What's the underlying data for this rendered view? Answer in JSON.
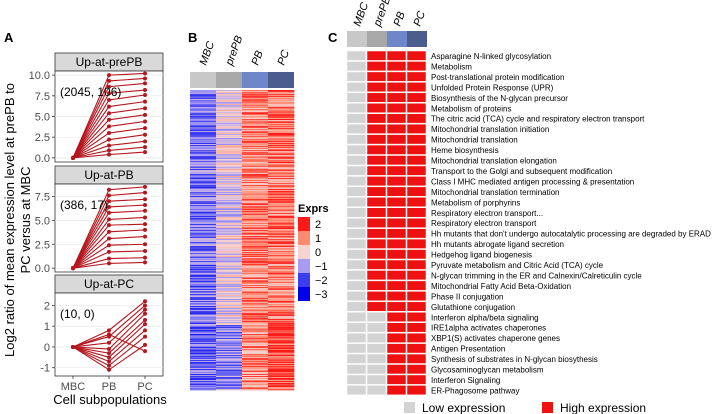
{
  "figure": {
    "panel_labels": [
      "A",
      "B",
      "C"
    ]
  },
  "chart_data": [
    {
      "type": "line",
      "panel": "A",
      "ylabel_line1": "Log2 ratio of mean expression level at prePB to",
      "ylabel_line2": "PC versus at MBC",
      "xlabel": "Cell subpopulations",
      "x": [
        "MBC",
        "PB",
        "PC"
      ],
      "line_color": "#b5171f",
      "facets": [
        {
          "title": "Up-at-prePB",
          "annotation": "(2045, 106)",
          "ylim": [
            -0.5,
            10.5
          ],
          "yticks": [
            0.0,
            2.5,
            5.0,
            7.5,
            10.0
          ],
          "ytick_labels": [
            "0.0",
            "2.5",
            "5.0",
            "7.5",
            "10.0"
          ],
          "series": [
            {
              "name": "g1",
              "values": [
                0,
                10.0,
                10.2
              ]
            },
            {
              "name": "g2",
              "values": [
                0,
                9.3,
                9.6
              ]
            },
            {
              "name": "g3",
              "values": [
                0,
                8.6,
                9.0
              ]
            },
            {
              "name": "g4",
              "values": [
                0,
                7.8,
                8.2
              ]
            },
            {
              "name": "g5",
              "values": [
                0,
                7.0,
                7.6
              ]
            },
            {
              "name": "g6",
              "values": [
                0,
                6.2,
                6.8
              ]
            },
            {
              "name": "g7",
              "values": [
                0,
                5.4,
                6.0
              ]
            },
            {
              "name": "g8",
              "values": [
                0,
                4.6,
                5.2
              ]
            },
            {
              "name": "g9",
              "values": [
                0,
                3.8,
                4.4
              ]
            },
            {
              "name": "g10",
              "values": [
                0,
                3.0,
                3.6
              ]
            },
            {
              "name": "g11",
              "values": [
                0,
                2.2,
                2.8
              ]
            },
            {
              "name": "g12",
              "values": [
                0,
                1.5,
                2.0
              ]
            },
            {
              "name": "g13",
              "values": [
                0,
                0.9,
                1.3
              ]
            },
            {
              "name": "g14",
              "values": [
                0,
                0.4,
                0.7
              ]
            }
          ]
        },
        {
          "title": "Up-at-PB",
          "annotation": "(386, 17)",
          "ylim": [
            -0.4,
            8.8
          ],
          "yticks": [
            0.0,
            2.5,
            5.0,
            7.5
          ],
          "ytick_labels": [
            "0.0",
            "2.5",
            "5.0",
            "7.5"
          ],
          "series": [
            {
              "name": "g1",
              "values": [
                0,
                8.2,
                8.5
              ]
            },
            {
              "name": "g2",
              "values": [
                0,
                7.6,
                7.9
              ]
            },
            {
              "name": "g3",
              "values": [
                0,
                7.0,
                7.2
              ]
            },
            {
              "name": "g4",
              "values": [
                0,
                6.4,
                6.6
              ]
            },
            {
              "name": "g5",
              "values": [
                0,
                5.8,
                6.0
              ]
            },
            {
              "name": "g6",
              "values": [
                0,
                5.1,
                5.3
              ]
            },
            {
              "name": "g7",
              "values": [
                0,
                4.5,
                4.6
              ]
            },
            {
              "name": "g8",
              "values": [
                0,
                3.8,
                4.0
              ]
            },
            {
              "name": "g9",
              "values": [
                0,
                3.1,
                3.3
              ]
            },
            {
              "name": "g10",
              "values": [
                0,
                2.4,
                2.5
              ]
            },
            {
              "name": "g11",
              "values": [
                0,
                1.7,
                1.8
              ]
            },
            {
              "name": "g12",
              "values": [
                0,
                1.0,
                1.1
              ]
            },
            {
              "name": "g13",
              "values": [
                0,
                0.5,
                0.6
              ]
            }
          ]
        },
        {
          "title": "Up-at-PC",
          "annotation": "(10, 0)",
          "ylim": [
            -1.4,
            2.6
          ],
          "yticks": [
            -1,
            0,
            1,
            2
          ],
          "ytick_labels": [
            "-1",
            "0",
            "1",
            "2"
          ],
          "series": [
            {
              "name": "g1",
              "values": [
                0,
                0.8,
                2.2
              ]
            },
            {
              "name": "g2",
              "values": [
                0,
                0.5,
                2.0
              ]
            },
            {
              "name": "g3",
              "values": [
                0,
                0.2,
                1.8
              ]
            },
            {
              "name": "g4",
              "values": [
                0,
                -0.1,
                1.6
              ]
            },
            {
              "name": "g5",
              "values": [
                0,
                -0.3,
                1.3
              ]
            },
            {
              "name": "g6",
              "values": [
                0,
                -0.5,
                1.1
              ]
            },
            {
              "name": "g7",
              "values": [
                0,
                -0.7,
                0.8
              ]
            },
            {
              "name": "g8",
              "values": [
                0,
                -0.9,
                0.5
              ]
            },
            {
              "name": "g9",
              "values": [
                0,
                -1.1,
                0.1
              ]
            },
            {
              "name": "g10",
              "values": [
                0,
                0.6,
                -0.2
              ]
            }
          ]
        }
      ]
    },
    {
      "type": "heatmap",
      "panel": "B",
      "columns": [
        "MBC",
        "prePB",
        "PB",
        "PC"
      ],
      "column_colors": [
        "#c8c8c8",
        "#a8a8a8",
        "#6f86c9",
        "#4a5d8c"
      ],
      "row_count": 300,
      "legend_title": "Exprs",
      "legend_values": [
        2,
        1,
        0,
        -1,
        -2,
        -3
      ],
      "legend_labels": [
        "2",
        "1",
        "0",
        "−1",
        "−2",
        "−3"
      ],
      "legend_colors": [
        "#ff1a1a",
        "#ff8a72",
        "#f7d3cf",
        "#a89bf2",
        "#3c3cf0",
        "#0000e8"
      ],
      "value_range": [
        -3,
        2
      ]
    },
    {
      "type": "table",
      "panel": "C",
      "columns": [
        "MBC",
        "prePB",
        "PB",
        "PC"
      ],
      "column_colors": [
        "#c8c8c8",
        "#a8a8a8",
        "#6f86c9",
        "#4a5d8c"
      ],
      "low_color": "#d3d3d3",
      "high_color": "#ee1111",
      "legend": {
        "low": "Low expression",
        "high": "High expression"
      },
      "rows": [
        {
          "pathway": "Asparagine N-linked glycosylation",
          "values": [
            0,
            1,
            1,
            1
          ]
        },
        {
          "pathway": "Metabolism",
          "values": [
            0,
            1,
            1,
            1
          ]
        },
        {
          "pathway": "Post-translational protein modification",
          "values": [
            0,
            1,
            1,
            1
          ]
        },
        {
          "pathway": "Unfolded Protein Response (UPR)",
          "values": [
            0,
            1,
            1,
            1
          ]
        },
        {
          "pathway": "Biosynthesis of the N-glycan precursor",
          "values": [
            0,
            1,
            1,
            1
          ]
        },
        {
          "pathway": "Metabolism of proteins",
          "values": [
            0,
            1,
            1,
            1
          ]
        },
        {
          "pathway": "The citric acid (TCA) cycle and respiratory electron transport",
          "values": [
            0,
            1,
            1,
            1
          ]
        },
        {
          "pathway": "Mitochondrial translation initiation",
          "values": [
            0,
            1,
            1,
            1
          ]
        },
        {
          "pathway": "Mitochondrial translation",
          "values": [
            0,
            1,
            1,
            1
          ]
        },
        {
          "pathway": "Heme biosynthesis",
          "values": [
            0,
            1,
            1,
            1
          ]
        },
        {
          "pathway": "Mitochondrial translation elongation",
          "values": [
            0,
            1,
            1,
            1
          ]
        },
        {
          "pathway": "Transport to the Golgi and subsequent modification",
          "values": [
            0,
            1,
            1,
            1
          ]
        },
        {
          "pathway": "Class I MHC mediated antigen processing & presentation",
          "values": [
            0,
            1,
            1,
            1
          ]
        },
        {
          "pathway": "Mitochondrial translation termination",
          "values": [
            0,
            1,
            1,
            1
          ]
        },
        {
          "pathway": "Metabolism of porphyrins",
          "values": [
            0,
            1,
            1,
            1
          ]
        },
        {
          "pathway": "Respiratory electron transport...",
          "values": [
            0,
            1,
            1,
            1
          ]
        },
        {
          "pathway": "Respiratory electron transport",
          "values": [
            0,
            1,
            1,
            1
          ]
        },
        {
          "pathway": "Hh mutants that don't undergo autocatalytic processing are degraded by ERAD",
          "values": [
            0,
            1,
            1,
            1
          ]
        },
        {
          "pathway": "Hh mutants abrogate ligand secretion",
          "values": [
            0,
            1,
            1,
            1
          ]
        },
        {
          "pathway": "Hedgehog ligand biogenesis",
          "values": [
            0,
            1,
            1,
            1
          ]
        },
        {
          "pathway": "Pyruvate metabolism and Citric Acid (TCA) cycle",
          "values": [
            0,
            1,
            1,
            1
          ]
        },
        {
          "pathway": "N-glycan trimming in the ER and Calnexin/Calreticulin cycle",
          "values": [
            0,
            1,
            1,
            1
          ]
        },
        {
          "pathway": "Mitochondrial Fatty Acid Beta-Oxidation",
          "values": [
            0,
            1,
            1,
            1
          ]
        },
        {
          "pathway": "Phase II conjugation",
          "values": [
            0,
            1,
            1,
            1
          ]
        },
        {
          "pathway": "Glutathione conjugation",
          "values": [
            0,
            1,
            1,
            1
          ]
        },
        {
          "pathway": "Interferon alpha/beta signaling",
          "values": [
            0,
            0,
            1,
            1
          ]
        },
        {
          "pathway": "IRE1alpha activates chaperones",
          "values": [
            0,
            0,
            1,
            1
          ]
        },
        {
          "pathway": "XBP1(S) activates chaperone genes",
          "values": [
            0,
            0,
            1,
            1
          ]
        },
        {
          "pathway": "Antigen Presentation",
          "values": [
            0,
            0,
            1,
            1
          ]
        },
        {
          "pathway": "Synthesis of substrates in N-glycan biosythesis",
          "values": [
            0,
            0,
            1,
            1
          ]
        },
        {
          "pathway": "Glycosaminoglycan metabolism",
          "values": [
            0,
            0,
            1,
            1
          ]
        },
        {
          "pathway": "Interferon Signaling",
          "values": [
            0,
            0,
            1,
            1
          ]
        },
        {
          "pathway": "ER-Phagosome pathway",
          "values": [
            0,
            0,
            1,
            1
          ]
        }
      ]
    }
  ]
}
